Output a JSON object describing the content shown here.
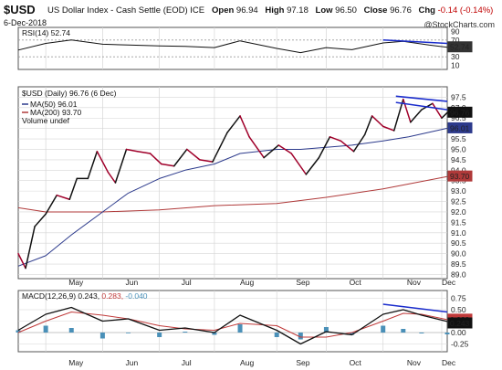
{
  "header": {
    "ticker": "$USD",
    "description": "US Dollar Index - Cash Settle (EOD) ICE",
    "date": "6-Dec-2018",
    "open_label": "Open",
    "open": "96.94",
    "high_label": "High",
    "high": "97.18",
    "low_label": "Low",
    "low": "96.50",
    "close_label": "Close",
    "close": "96.76",
    "chg_label": "Chg",
    "chg": "-0.14 (-0.14%)",
    "watermark": "@StockCharts.com"
  },
  "colors": {
    "price": "#111111",
    "price_down": "#a0002a",
    "ma50": "#2c3a8c",
    "ma200": "#b03a3a",
    "rsi": "#111111",
    "macd": "#111111",
    "signal": "#c03a3a",
    "hist": "#4a90b8",
    "trendline": "#1a2ccc",
    "grid": "#d6d6d6"
  },
  "chart_data": [
    {
      "type": "line",
      "panel": "rsi",
      "legend": "RSI(14) 52.74",
      "last_value": "52.74",
      "y_ticks": [
        "90",
        "70",
        "50",
        "30",
        "10"
      ],
      "ylim": [
        0,
        100
      ],
      "x": [
        "2018-04-16",
        "2018-05-01",
        "2018-05-15",
        "2018-06-01",
        "2018-06-15",
        "2018-07-02",
        "2018-07-16",
        "2018-08-01",
        "2018-08-15",
        "2018-09-04",
        "2018-09-17",
        "2018-10-01",
        "2018-10-15",
        "2018-11-01",
        "2018-11-12",
        "2018-11-26",
        "2018-12-06"
      ],
      "values": [
        46,
        62,
        70,
        60,
        58,
        56,
        55,
        52,
        68,
        50,
        40,
        52,
        47,
        63,
        67,
        58,
        52.74
      ]
    },
    {
      "type": "line",
      "panel": "price",
      "legend": [
        "$USD (Daily) 96.76 (6 Dec)",
        "MA(50) 96.01",
        "MA(200) 93.70",
        "Volume undef"
      ],
      "y_ticks": [
        "97.5",
        "97.0",
        "96.5",
        "96.0",
        "95.5",
        "95.0",
        "94.5",
        "94.0",
        "93.5",
        "93.0",
        "92.5",
        "92.0",
        "91.5",
        "91.0",
        "90.5",
        "90.0",
        "89.5",
        "89.0"
      ],
      "ylim": [
        88.8,
        98.0
      ],
      "x_ticks": [
        "May",
        "Jun",
        "Jul",
        "Aug",
        "Sep",
        "Oct",
        "Nov",
        "Dec"
      ],
      "last_labels": [
        "96.76",
        "96.01",
        "93.70"
      ],
      "series": [
        {
          "name": "$USD (Daily)",
          "x": [
            "2018-04-16",
            "2018-04-20",
            "2018-04-25",
            "2018-05-01",
            "2018-05-07",
            "2018-05-14",
            "2018-05-18",
            "2018-05-24",
            "2018-05-29",
            "2018-06-04",
            "2018-06-08",
            "2018-06-14",
            "2018-06-20",
            "2018-06-27",
            "2018-07-03",
            "2018-07-10",
            "2018-07-17",
            "2018-07-24",
            "2018-07-31",
            "2018-08-08",
            "2018-08-15",
            "2018-08-20",
            "2018-08-28",
            "2018-09-05",
            "2018-09-12",
            "2018-09-20",
            "2018-09-27",
            "2018-10-03",
            "2018-10-09",
            "2018-10-16",
            "2018-10-22",
            "2018-10-26",
            "2018-11-01",
            "2018-11-07",
            "2018-11-12",
            "2018-11-16",
            "2018-11-22",
            "2018-11-28",
            "2018-12-03",
            "2018-12-06"
          ],
          "values": [
            90.0,
            89.3,
            91.3,
            91.9,
            92.8,
            92.6,
            93.6,
            93.6,
            94.9,
            93.9,
            93.4,
            95.0,
            94.9,
            94.8,
            94.3,
            94.2,
            95.0,
            94.5,
            94.4,
            95.8,
            96.6,
            95.6,
            94.6,
            95.2,
            94.8,
            93.8,
            94.6,
            95.6,
            95.4,
            94.9,
            95.7,
            96.6,
            96.1,
            95.9,
            97.4,
            96.3,
            96.9,
            97.2,
            96.5,
            96.76
          ]
        },
        {
          "name": "MA(50)",
          "x": [
            "2018-04-16",
            "2018-05-01",
            "2018-05-15",
            "2018-06-01",
            "2018-06-15",
            "2018-07-02",
            "2018-07-16",
            "2018-08-01",
            "2018-08-15",
            "2018-09-04",
            "2018-09-17",
            "2018-10-01",
            "2018-10-15",
            "2018-11-01",
            "2018-11-15",
            "2018-12-06"
          ],
          "values": [
            89.4,
            89.9,
            90.9,
            92.0,
            92.9,
            93.6,
            94.0,
            94.3,
            94.8,
            95.0,
            95.0,
            95.1,
            95.2,
            95.4,
            95.6,
            96.01
          ]
        },
        {
          "name": "MA(200)",
          "x": [
            "2018-04-16",
            "2018-05-01",
            "2018-06-01",
            "2018-07-02",
            "2018-08-01",
            "2018-09-04",
            "2018-10-01",
            "2018-11-01",
            "2018-12-06"
          ],
          "values": [
            92.2,
            92.0,
            92.0,
            92.1,
            92.3,
            92.4,
            92.7,
            93.1,
            93.7
          ]
        }
      ]
    },
    {
      "type": "line",
      "panel": "macd",
      "legend": [
        "MACD(12,26,9)",
        "0.243",
        "0.283",
        "-0.040"
      ],
      "y_ticks": [
        "0.75",
        "0.50",
        "0.25",
        "0.00",
        "-0.25"
      ],
      "ylim": [
        -0.42,
        0.92
      ],
      "x_ticks": [
        "May",
        "Jun",
        "Jul",
        "Aug",
        "Sep",
        "Oct",
        "Nov",
        "Dec"
      ],
      "last_labels": [
        "0.283",
        "0.243"
      ],
      "series": [
        {
          "name": "MACD",
          "x": [
            "2018-04-16",
            "2018-05-01",
            "2018-05-15",
            "2018-06-01",
            "2018-06-15",
            "2018-07-02",
            "2018-07-16",
            "2018-08-01",
            "2018-08-15",
            "2018-09-04",
            "2018-09-17",
            "2018-10-01",
            "2018-10-15",
            "2018-11-01",
            "2018-11-12",
            "2018-11-22",
            "2018-12-06"
          ],
          "values": [
            0.05,
            0.4,
            0.55,
            0.25,
            0.3,
            0.05,
            0.1,
            0.0,
            0.38,
            0.05,
            -0.25,
            0.02,
            -0.05,
            0.4,
            0.5,
            0.38,
            0.243
          ]
        },
        {
          "name": "Signal",
          "x": [
            "2018-04-16",
            "2018-05-01",
            "2018-05-15",
            "2018-06-01",
            "2018-06-15",
            "2018-07-02",
            "2018-07-16",
            "2018-08-01",
            "2018-08-15",
            "2018-09-04",
            "2018-09-17",
            "2018-10-01",
            "2018-10-15",
            "2018-11-01",
            "2018-11-12",
            "2018-11-22",
            "2018-12-06"
          ],
          "values": [
            0.0,
            0.25,
            0.45,
            0.38,
            0.3,
            0.15,
            0.08,
            0.05,
            0.2,
            0.15,
            -0.1,
            -0.1,
            0.0,
            0.25,
            0.42,
            0.4,
            0.283
          ]
        },
        {
          "name": "Histogram",
          "x": [
            "2018-04-16",
            "2018-05-01",
            "2018-05-15",
            "2018-06-01",
            "2018-06-15",
            "2018-07-02",
            "2018-07-16",
            "2018-08-01",
            "2018-08-15",
            "2018-09-04",
            "2018-09-17",
            "2018-10-01",
            "2018-10-15",
            "2018-11-01",
            "2018-11-12",
            "2018-11-22",
            "2018-12-06"
          ],
          "values": [
            0.05,
            0.15,
            0.1,
            -0.13,
            0.0,
            -0.1,
            0.02,
            -0.05,
            0.18,
            -0.1,
            -0.15,
            0.12,
            -0.05,
            0.15,
            0.08,
            -0.02,
            -0.04
          ]
        }
      ]
    }
  ]
}
